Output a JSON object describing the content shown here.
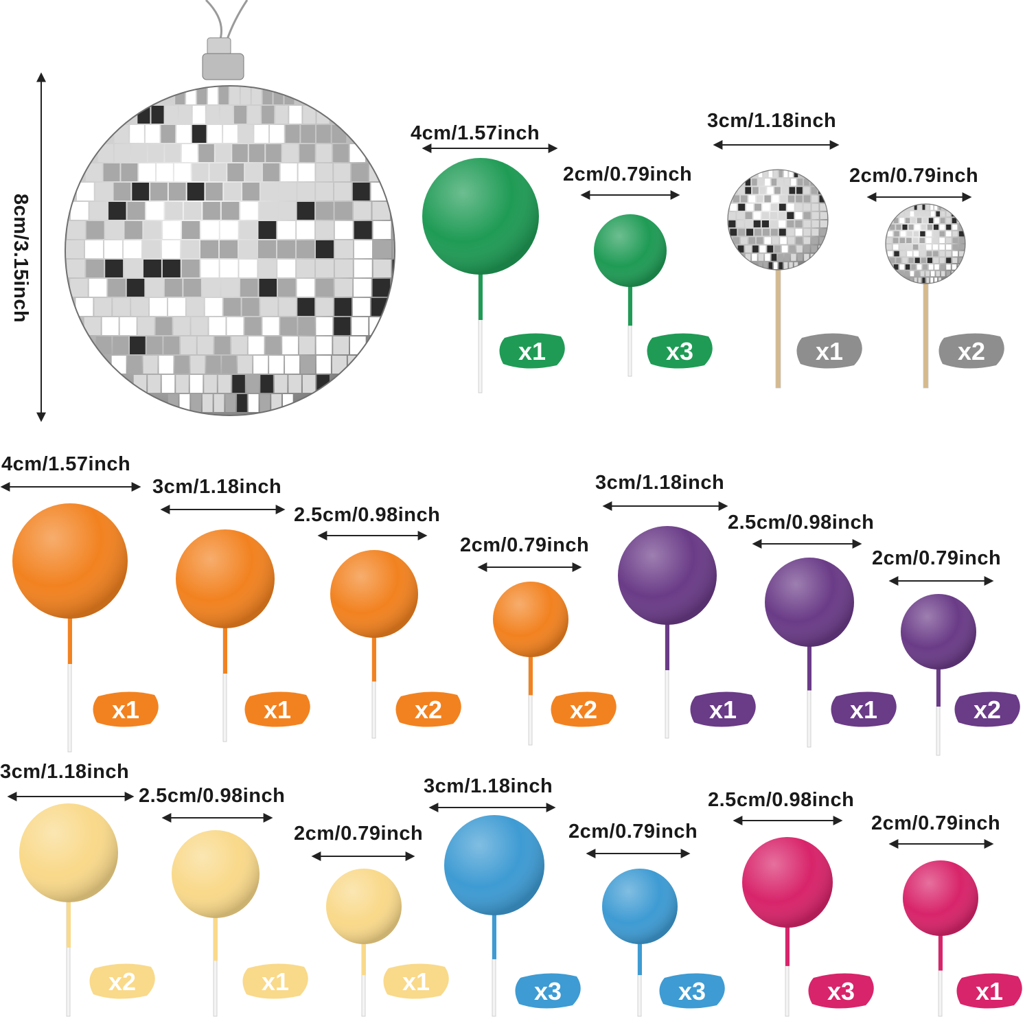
{
  "colors": {
    "green": "#1f9b55",
    "silver": "#8e8e8e",
    "orange": "#f28220",
    "purple": "#6a3b87",
    "cream": "#f9d98a",
    "blue": "#3e9bd3",
    "pink": "#d8246a",
    "text": "#1a1a1a",
    "stick_white": "#f4f4f4",
    "stick_wood": "#d6b98c"
  },
  "large_disco_ball": {
    "size_label": "8cm/3.15inch",
    "icon": "disco-ball-icon"
  },
  "items": [
    {
      "id": "green-4cm",
      "size_label": "4cm/1.57inch",
      "qty": "x1",
      "color": "green",
      "type": "ball"
    },
    {
      "id": "green-2cm",
      "size_label": "2cm/0.79inch",
      "qty": "x3",
      "color": "green",
      "type": "ball"
    },
    {
      "id": "disco-3cm",
      "size_label": "3cm/1.18inch",
      "qty": "x1",
      "color": "silver",
      "type": "disco"
    },
    {
      "id": "disco-2cm",
      "size_label": "2cm/0.79inch",
      "qty": "x2",
      "color": "silver",
      "type": "disco"
    },
    {
      "id": "orange-4cm",
      "size_label": "4cm/1.57inch",
      "qty": "x1",
      "color": "orange",
      "type": "ball"
    },
    {
      "id": "orange-3cm",
      "size_label": "3cm/1.18inch",
      "qty": "x1",
      "color": "orange",
      "type": "ball"
    },
    {
      "id": "orange-2-5cm",
      "size_label": "2.5cm/0.98inch",
      "qty": "x2",
      "color": "orange",
      "type": "ball"
    },
    {
      "id": "orange-2cm",
      "size_label": "2cm/0.79inch",
      "qty": "x2",
      "color": "orange",
      "type": "ball"
    },
    {
      "id": "purple-3cm",
      "size_label": "3cm/1.18inch",
      "qty": "x1",
      "color": "purple",
      "type": "ball"
    },
    {
      "id": "purple-2-5cm",
      "size_label": "2.5cm/0.98inch",
      "qty": "x1",
      "color": "purple",
      "type": "ball"
    },
    {
      "id": "purple-2cm",
      "size_label": "2cm/0.79inch",
      "qty": "x2",
      "color": "purple",
      "type": "ball"
    },
    {
      "id": "cream-3cm",
      "size_label": "3cm/1.18inch",
      "qty": "x2",
      "color": "cream",
      "type": "ball"
    },
    {
      "id": "cream-2-5cm",
      "size_label": "2.5cm/0.98inch",
      "qty": "x1",
      "color": "cream",
      "type": "ball"
    },
    {
      "id": "cream-2cm",
      "size_label": "2cm/0.79inch",
      "qty": "x1",
      "color": "cream",
      "type": "ball"
    },
    {
      "id": "blue-3cm",
      "size_label": "3cm/1.18inch",
      "qty": "x3",
      "color": "blue",
      "type": "ball"
    },
    {
      "id": "blue-2cm",
      "size_label": "2cm/0.79inch",
      "qty": "x3",
      "color": "blue",
      "type": "ball"
    },
    {
      "id": "pink-2-5cm",
      "size_label": "2.5cm/0.98inch",
      "qty": "x3",
      "color": "pink",
      "type": "ball"
    },
    {
      "id": "pink-2cm",
      "size_label": "2cm/0.79inch",
      "qty": "x1",
      "color": "pink",
      "type": "ball"
    }
  ]
}
